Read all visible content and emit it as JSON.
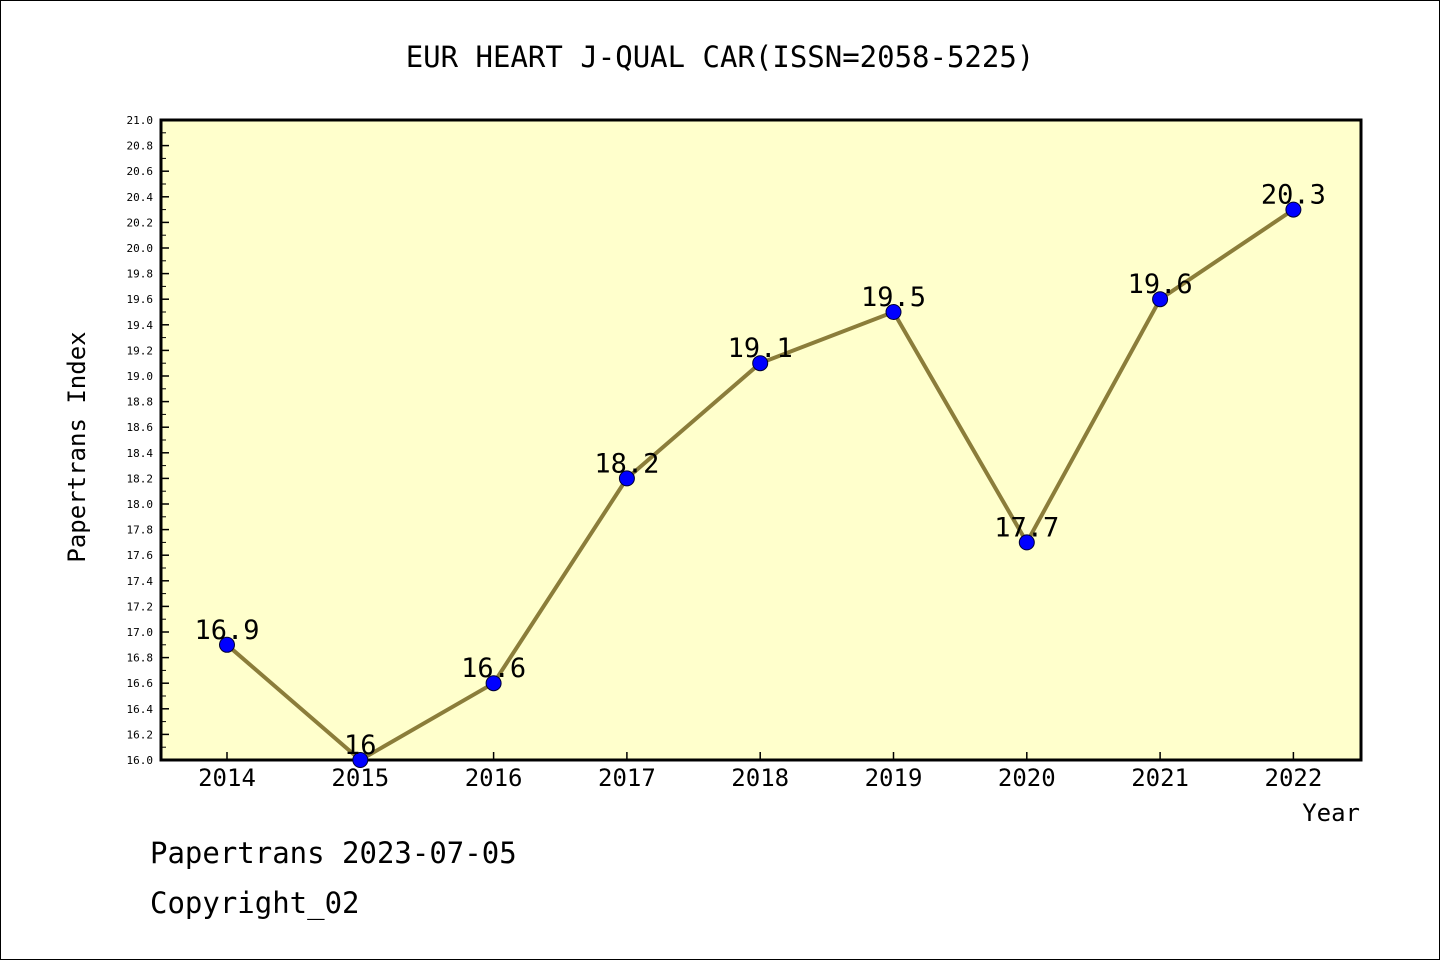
{
  "chart_data": {
    "type": "line",
    "title": "EUR HEART J-QUAL CAR(ISSN=2058-5225)",
    "xlabel": "Year",
    "ylabel": "Papertrans Index",
    "categories": [
      "2014",
      "2015",
      "2016",
      "2017",
      "2018",
      "2019",
      "2020",
      "2021",
      "2022"
    ],
    "series": [
      {
        "values": [
          16.9,
          16.0,
          16.6,
          18.2,
          19.1,
          19.5,
          17.7,
          19.6,
          20.3
        ],
        "data_labels": [
          "16.9",
          "16",
          "16.6",
          "18.2",
          "19.1",
          "19.5",
          "17.7",
          "19.6",
          "20.3"
        ]
      }
    ],
    "ylim": [
      16.0,
      21.0
    ],
    "y_ticks": [
      "16.0",
      "16.2",
      "16.4",
      "16.6",
      "16.8",
      "17.0",
      "17.2",
      "17.4",
      "17.6",
      "17.8",
      "18.0",
      "18.2",
      "18.4",
      "18.6",
      "18.8",
      "19.0",
      "19.2",
      "19.4",
      "19.6",
      "19.8",
      "20.0",
      "20.2",
      "20.4",
      "20.6",
      "20.8",
      "21.0"
    ],
    "grid": false,
    "legend": "none",
    "colors": {
      "plot_background": "#ffffcc",
      "line": "#8b7d3a",
      "marker_fill": "#0000ff",
      "marker_edge": "#000033"
    }
  },
  "footer": {
    "date_text": "Papertrans 2023-07-05",
    "copyright_text": "Copyright_02"
  }
}
